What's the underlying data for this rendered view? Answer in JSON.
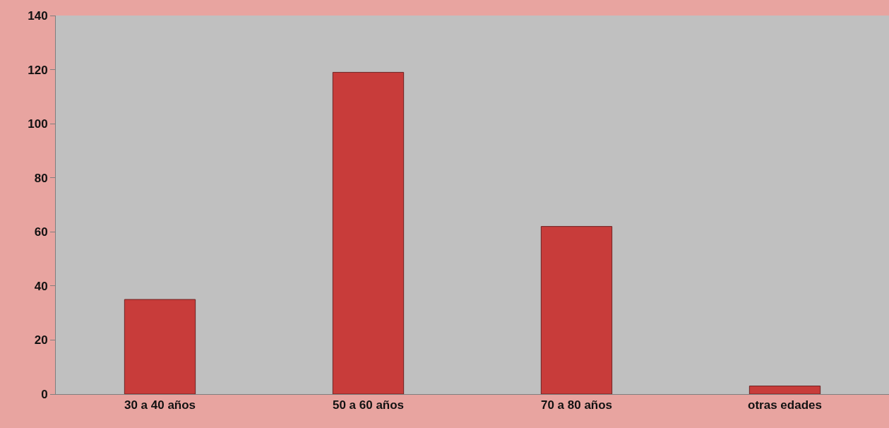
{
  "chart_data": {
    "type": "bar",
    "categories": [
      "30 a 40 años",
      "50 a 60 años",
      "70 a 80 años",
      "otras edades"
    ],
    "values": [
      35,
      119,
      62,
      3
    ],
    "color": "#c83c3a",
    "ylim": [
      0,
      140
    ],
    "yticks": [
      0,
      20,
      40,
      60,
      80,
      100,
      120,
      140
    ],
    "grid": false,
    "legend": false
  }
}
